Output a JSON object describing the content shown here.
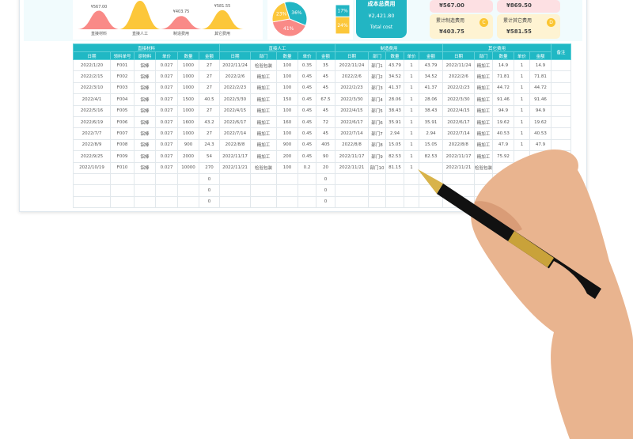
{
  "summary_chart": {
    "items": [
      {
        "label": "直接材料",
        "value": "¥567.00",
        "amount": 567.0,
        "color": "#f98a87"
      },
      {
        "label": "直接人工",
        "value": "",
        "amount": 869.5,
        "color": "#fcc73a"
      },
      {
        "label": "制造费用",
        "value": "¥403.75",
        "amount": 403.75,
        "color": "#f98a87"
      },
      {
        "label": "其它费用",
        "value": "¥581.55",
        "amount": 581.55,
        "color": "#fcc73a"
      }
    ]
  },
  "pie": {
    "slices": [
      {
        "label": "36%",
        "value": 36,
        "color": "#22b5c3"
      },
      {
        "label": "41%",
        "value": 41,
        "color": "#f98a87"
      },
      {
        "label": "23%",
        "value": 23,
        "color": "#fcc73a"
      }
    ],
    "bar": [
      {
        "label": "17%",
        "value": 17,
        "color": "#22b5c3"
      },
      {
        "label": "24%",
        "value": 24,
        "color": "#fcc73a"
      }
    ]
  },
  "total": {
    "label": "成本总费用",
    "value": "¥2,421.80",
    "en": "Total cost",
    "color": "#22b5c3"
  },
  "cards": [
    {
      "value": "¥567.00",
      "color": "#fde0e3"
    },
    {
      "value": "¥869.50",
      "color": "#fde0e3"
    },
    {
      "label": "累计制造费用",
      "value": "¥403.75",
      "badge": "C",
      "color": "#fef3d2"
    },
    {
      "label": "累计其它费用",
      "value": "¥581.55",
      "badge": "D",
      "color": "#fef3d2"
    }
  ],
  "table": {
    "groups": [
      "直接材料",
      "直接人工",
      "制造费用",
      "其它费用",
      "备注"
    ],
    "headers": [
      "日期",
      "领料单号",
      "原物料",
      "单价",
      "数量",
      "金额",
      "日期",
      "部门",
      "数量",
      "单价",
      "金额",
      "日期",
      "部门",
      "数量",
      "单价",
      "金额",
      "日期",
      "部门",
      "数量",
      "单价",
      "金额"
    ],
    "rows": [
      [
        "2022/1/20",
        "F001",
        "铝棒",
        "0.027",
        "1000",
        "27",
        "2022/11/24",
        "检验包装",
        "100",
        "0.35",
        "35",
        "2022/11/24",
        "部门1",
        "43.79",
        "1",
        "43.79",
        "2022/11/24",
        "精加工",
        "14.9",
        "1",
        "14.9",
        ""
      ],
      [
        "2022/2/15",
        "F002",
        "铝棒",
        "0.027",
        "1000",
        "27",
        "2022/2/6",
        "精加工",
        "100",
        "0.45",
        "45",
        "2022/2/6",
        "部门2",
        "34.52",
        "1",
        "34.52",
        "2022/2/6",
        "精加工",
        "71.81",
        "1",
        "71.81",
        ""
      ],
      [
        "2022/3/10",
        "F003",
        "铝棒",
        "0.027",
        "1000",
        "27",
        "2022/2/23",
        "精加工",
        "100",
        "0.45",
        "45",
        "2022/2/23",
        "部门3",
        "41.37",
        "1",
        "41.37",
        "2022/2/23",
        "精加工",
        "44.72",
        "1",
        "44.72",
        ""
      ],
      [
        "2022/4/1",
        "F004",
        "铝棒",
        "0.027",
        "1500",
        "40.5",
        "2022/3/30",
        "精加工",
        "150",
        "0.45",
        "67.5",
        "2022/3/30",
        "部门4",
        "28.06",
        "1",
        "28.06",
        "2022/3/30",
        "精加工",
        "91.46",
        "1",
        "91.46",
        ""
      ],
      [
        "2022/5/16",
        "F005",
        "铝棒",
        "0.027",
        "1000",
        "27",
        "2022/4/15",
        "精加工",
        "100",
        "0.45",
        "45",
        "2022/4/15",
        "部门5",
        "38.43",
        "1",
        "38.43",
        "2022/4/15",
        "精加工",
        "94.9",
        "1",
        "94.9",
        ""
      ],
      [
        "2022/6/19",
        "F006",
        "铝棒",
        "0.027",
        "1600",
        "43.2",
        "2022/6/17",
        "精加工",
        "160",
        "0.45",
        "72",
        "2022/6/17",
        "部门6",
        "35.91",
        "1",
        "35.91",
        "2022/6/17",
        "精加工",
        "19.62",
        "1",
        "19.62",
        ""
      ],
      [
        "2022/7/7",
        "F007",
        "铝棒",
        "0.027",
        "1000",
        "27",
        "2022/7/14",
        "精加工",
        "100",
        "0.45",
        "45",
        "2022/7/14",
        "部门7",
        "2.94",
        "1",
        "2.94",
        "2022/7/14",
        "精加工",
        "40.53",
        "1",
        "40.53",
        ""
      ],
      [
        "2022/8/9",
        "F008",
        "铝棒",
        "0.027",
        "900",
        "24.3",
        "2022/8/8",
        "精加工",
        "900",
        "0.45",
        "405",
        "2022/8/8",
        "部门8",
        "15.05",
        "1",
        "15.05",
        "2022/8/8",
        "精加工",
        "47.9",
        "1",
        "47.9",
        ""
      ],
      [
        "2022/9/25",
        "F009",
        "铝棒",
        "0.027",
        "2000",
        "54",
        "2022/11/17",
        "精加工",
        "200",
        "0.45",
        "90",
        "2022/11/17",
        "部门9",
        "82.53",
        "1",
        "82.53",
        "2022/11/17",
        "精加工",
        "75.92",
        "",
        "",
        " "
      ],
      [
        "2022/10/19",
        "F010",
        "铝棒",
        "0.027",
        "10000",
        "270",
        "2022/11/21",
        "检验包装",
        "100",
        "0.2",
        "20",
        "2022/11/21",
        "部门10",
        "81.15",
        "1",
        "",
        "2022/11/21",
        "检验包装",
        "",
        "",
        "",
        ""
      ],
      [
        "",
        "",
        "",
        "",
        "",
        "0",
        "",
        "",
        "",
        "",
        "0",
        "",
        "",
        "",
        "",
        "",
        "",
        "",
        "",
        "",
        "",
        ""
      ],
      [
        "",
        "",
        "",
        "",
        "",
        "0",
        "",
        "",
        "",
        "",
        "0",
        "",
        "",
        "",
        "",
        "",
        "",
        "",
        "",
        "",
        "",
        ""
      ],
      [
        "",
        "",
        "",
        "",
        "",
        "0",
        "",
        "",
        "",
        "",
        "0",
        "",
        "",
        "",
        "",
        "",
        "",
        "",
        "",
        "",
        "",
        ""
      ]
    ]
  }
}
